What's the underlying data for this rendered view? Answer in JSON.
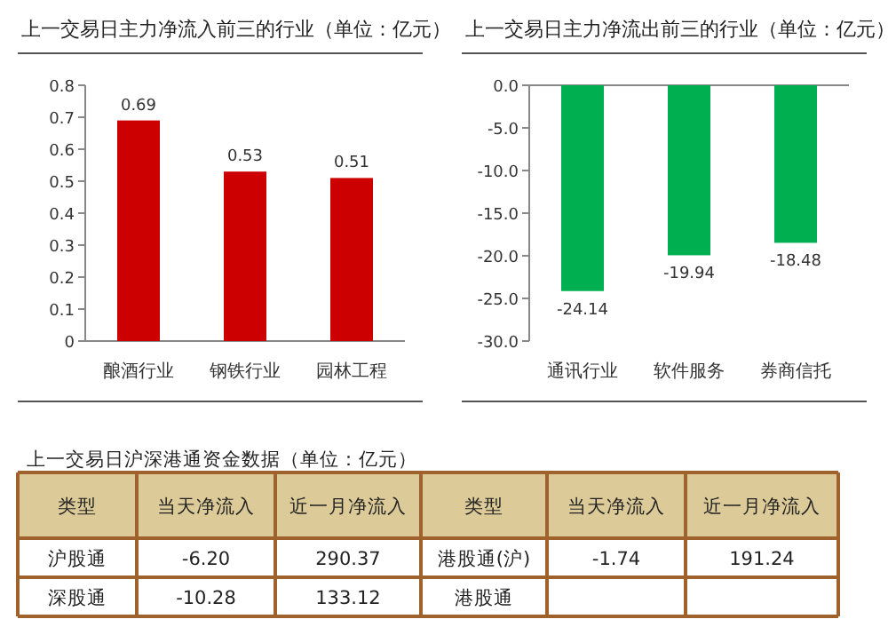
{
  "chart_data": [
    {
      "type": "bar",
      "title": "上一交易日主力净流入前三的行业（单位：亿元）",
      "categories": [
        "酿酒行业",
        "钢铁行业",
        "园林工程"
      ],
      "values": [
        0.69,
        0.53,
        0.51
      ],
      "color": "#cc0000",
      "ylim": [
        0,
        0.8
      ],
      "yticks": [
        0,
        0.1,
        0.2,
        0.3,
        0.4,
        0.5,
        0.6,
        0.7,
        0.8
      ],
      "data_labels": true
    },
    {
      "type": "bar",
      "title": "上一交易日主力净流出前三的行业（单位：亿元）",
      "categories": [
        "通讯行业",
        "软件服务",
        "券商信托"
      ],
      "values": [
        -24.14,
        -19.94,
        -18.48
      ],
      "color": "#00b050",
      "ylim": [
        -30,
        0
      ],
      "yticks": [
        {
          "value": 0,
          "label": "0.0"
        },
        {
          "value": -5,
          "label": "-5.0"
        },
        {
          "value": -10,
          "label": "-10.0"
        },
        {
          "value": -15,
          "label": "-15.0"
        },
        {
          "value": -20,
          "label": "-20.0"
        },
        {
          "value": -25,
          "label": "-25.0"
        },
        {
          "value": -30,
          "label": "-30.0"
        }
      ],
      "data_labels": true
    },
    {
      "type": "other",
      "title": "上一交易日沪深港通资金数据（单位：亿元）",
      "annotations": [
        "类型",
        "当天净流入",
        "近一月净流入",
        "类型",
        "当天净流入",
        "近一月净流入",
        "沪股通",
        "-6.20",
        "290.37",
        "港股通(沪)",
        "-1.74",
        "191.24",
        "深股通",
        "-10.28",
        "133.12",
        "港股通"
      ]
    }
  ]
}
